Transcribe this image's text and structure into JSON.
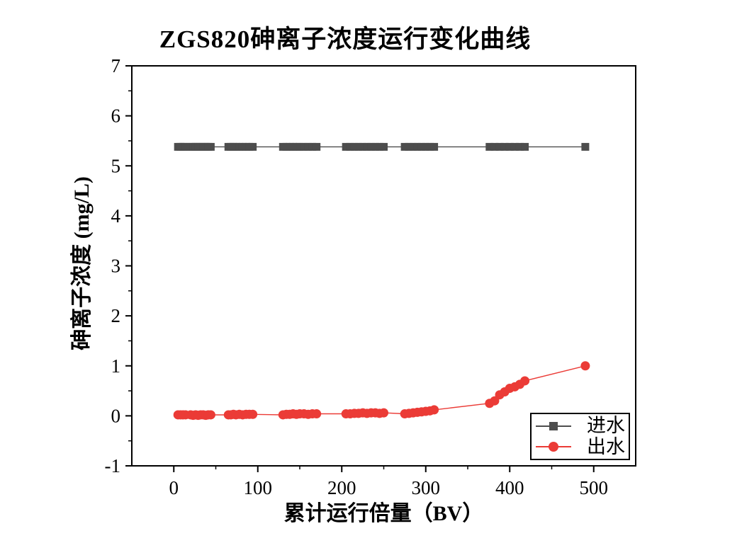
{
  "figure": {
    "background": "#ffffff",
    "axis_color": "#000000"
  },
  "legend": {
    "position": "bottom-right",
    "border_color": "#000000",
    "items": [
      {
        "label": "进水",
        "marker": "square",
        "color": "#4D4D4D"
      },
      {
        "label": "出水",
        "marker": "circle",
        "color": "#EB3B36"
      }
    ]
  },
  "chart_data": {
    "type": "scatter",
    "title": "ZGS820砷离子浓度运行变化曲线",
    "xlabel": "累计运行倍量（BV）",
    "ylabel": "砷离子浓度 (mg/L)",
    "xlim": [
      -50,
      550
    ],
    "ylim": [
      -1,
      7
    ],
    "x_major_ticks": [
      0,
      100,
      200,
      300,
      400,
      500
    ],
    "x_minor_ticks": [
      50,
      150,
      250,
      350,
      450
    ],
    "y_major_ticks": [
      -1,
      0,
      1,
      2,
      3,
      4,
      5,
      6,
      7
    ],
    "y_minor_ticks": [
      -0.5,
      0.5,
      1.5,
      2.5,
      3.5,
      4.5,
      5.5,
      6.5
    ],
    "grid": false,
    "legend_position": "bottom-right",
    "x_shared": [
      5,
      8,
      11,
      14,
      20,
      23,
      26,
      29,
      32,
      35,
      38,
      41,
      44,
      65,
      68,
      71,
      74,
      78,
      82,
      86,
      90,
      94,
      130,
      134,
      138,
      142,
      146,
      150,
      155,
      160,
      165,
      170,
      205,
      210,
      215,
      220,
      225,
      230,
      235,
      240,
      245,
      250,
      275,
      280,
      285,
      290,
      295,
      300,
      305,
      310,
      376,
      382,
      388,
      394,
      400,
      406,
      412,
      418,
      490
    ],
    "series": [
      {
        "name": "进水",
        "marker": "square",
        "color": "#4D4D4D",
        "marker_size": 11,
        "y": [
          5.38,
          5.38,
          5.38,
          5.38,
          5.38,
          5.38,
          5.38,
          5.38,
          5.38,
          5.38,
          5.38,
          5.38,
          5.38,
          5.38,
          5.38,
          5.38,
          5.38,
          5.38,
          5.38,
          5.38,
          5.38,
          5.38,
          5.38,
          5.38,
          5.38,
          5.38,
          5.38,
          5.38,
          5.38,
          5.38,
          5.38,
          5.38,
          5.38,
          5.38,
          5.38,
          5.38,
          5.38,
          5.38,
          5.38,
          5.38,
          5.38,
          5.38,
          5.38,
          5.38,
          5.38,
          5.38,
          5.38,
          5.38,
          5.38,
          5.38,
          5.38,
          5.38,
          5.38,
          5.38,
          5.38,
          5.38,
          5.38,
          5.38,
          5.38
        ]
      },
      {
        "name": "出水",
        "marker": "circle",
        "color": "#EB3B36",
        "marker_size": 13,
        "y": [
          0.02,
          0.02,
          0.02,
          0.02,
          0.02,
          0.01,
          0.02,
          0.01,
          0.02,
          0.02,
          0.01,
          0.02,
          0.02,
          0.02,
          0.02,
          0.03,
          0.02,
          0.03,
          0.02,
          0.03,
          0.03,
          0.03,
          0.02,
          0.03,
          0.03,
          0.04,
          0.03,
          0.04,
          0.04,
          0.03,
          0.04,
          0.04,
          0.04,
          0.04,
          0.05,
          0.05,
          0.06,
          0.05,
          0.06,
          0.06,
          0.05,
          0.06,
          0.04,
          0.05,
          0.06,
          0.07,
          0.08,
          0.09,
          0.1,
          0.12,
          0.25,
          0.3,
          0.42,
          0.48,
          0.55,
          0.58,
          0.63,
          0.7,
          1.0
        ]
      }
    ]
  }
}
